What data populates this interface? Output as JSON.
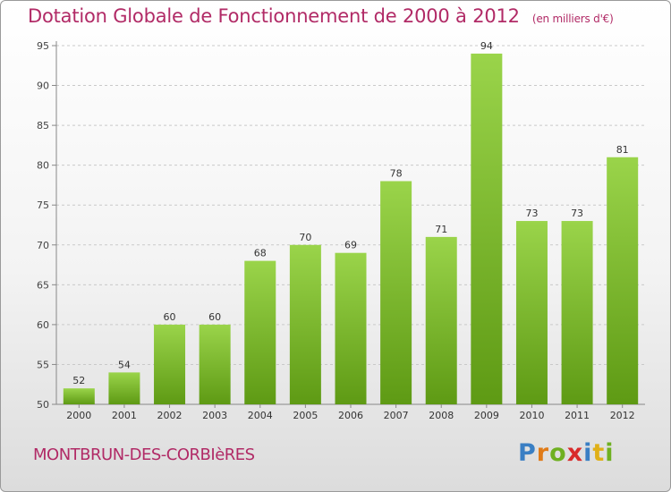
{
  "chart_data": {
    "type": "bar",
    "title": "Dotation Globale de Fonctionnement de 2000 à 2012",
    "subtitle": "(en milliers d'€)",
    "categories": [
      "2000",
      "2001",
      "2002",
      "2003",
      "2004",
      "2005",
      "2006",
      "2007",
      "2008",
      "2009",
      "2010",
      "2011",
      "2012"
    ],
    "values": [
      52,
      54,
      60,
      60,
      68,
      70,
      69,
      78,
      71,
      94,
      73,
      73,
      81
    ],
    "ylim": [
      50,
      95
    ],
    "yticks": [
      50,
      55,
      60,
      65,
      70,
      75,
      80,
      85,
      90,
      95
    ],
    "grid": true,
    "bar_color": "#7cbf2a"
  },
  "commune": "MONTBRUN-DES-CORBIèRES",
  "logo": {
    "p": "P",
    "r": "r",
    "o": "o",
    "x": "x",
    "i": "i",
    "t": "t",
    "i2": "i"
  }
}
